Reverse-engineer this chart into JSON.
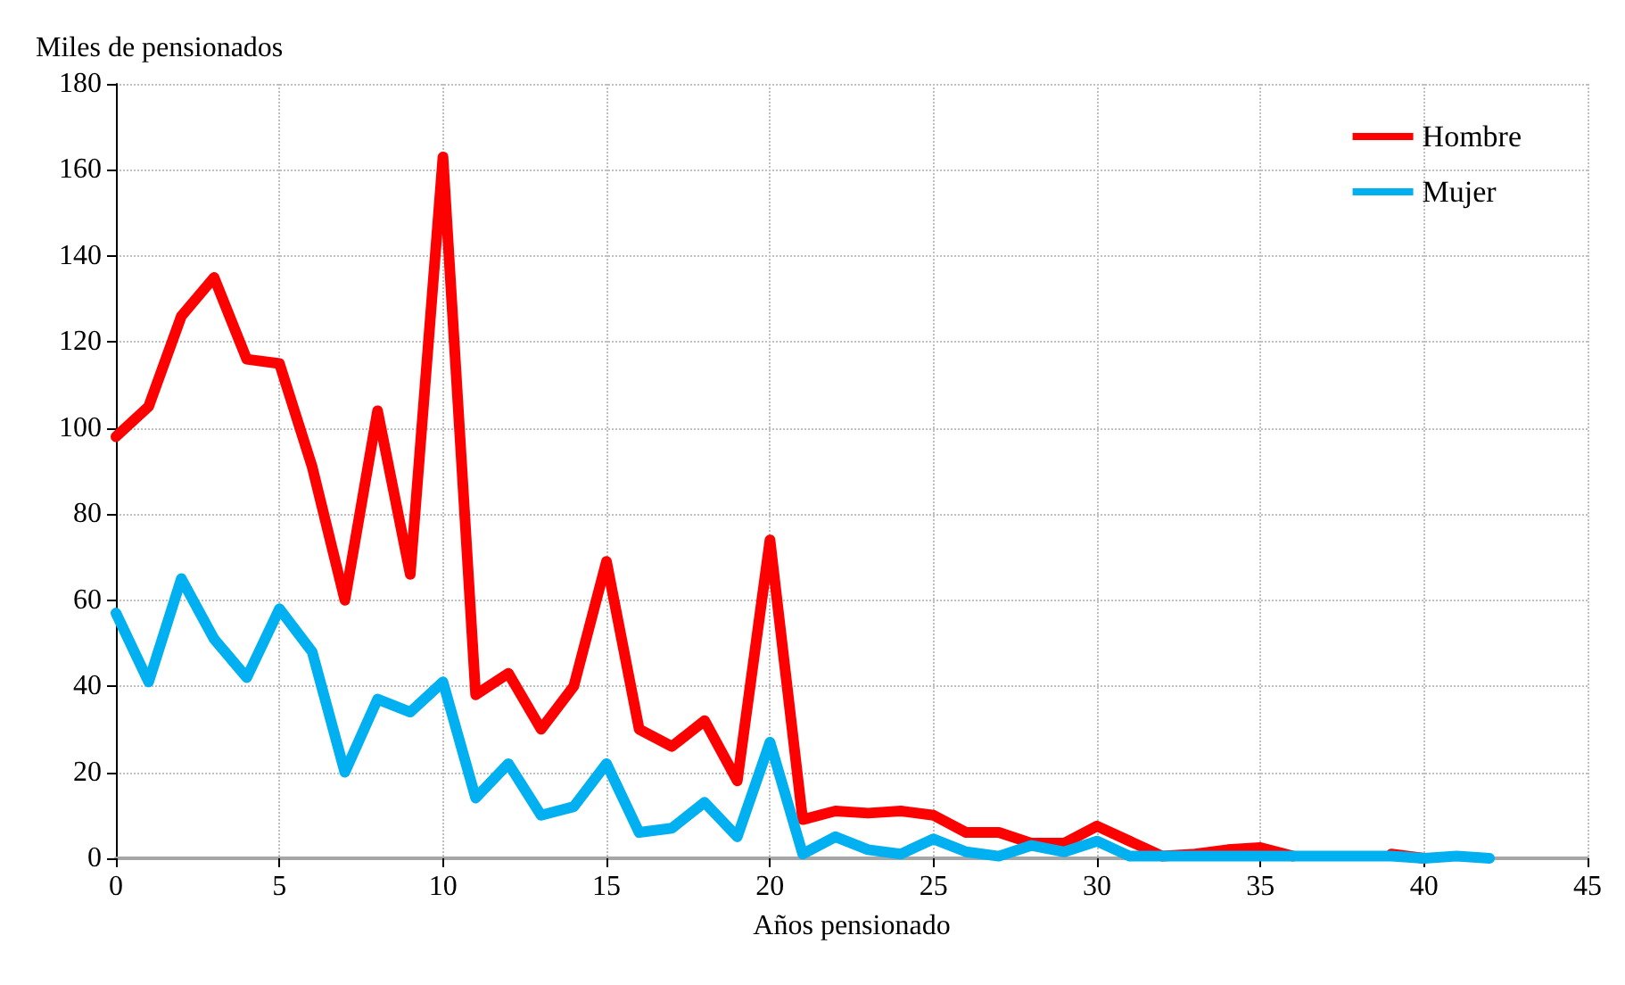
{
  "chart_data": {
    "type": "line",
    "xlabel": "Años pensionado",
    "ylabel": "Miles de pensionados",
    "x": [
      0,
      1,
      2,
      3,
      4,
      5,
      6,
      7,
      8,
      9,
      10,
      11,
      12,
      13,
      14,
      15,
      16,
      17,
      18,
      19,
      20,
      21,
      22,
      23,
      24,
      25,
      26,
      27,
      28,
      29,
      30,
      31,
      32,
      33,
      34,
      35,
      36,
      37,
      38,
      39,
      40,
      41,
      42
    ],
    "series": [
      {
        "name": "Hombre",
        "color": "#ff0000",
        "values": [
          98,
          105,
          126,
          135,
          116,
          115,
          91,
          60,
          104,
          66,
          163,
          38,
          43,
          30,
          40,
          69,
          30,
          26,
          32,
          18,
          74,
          9,
          11,
          10.5,
          11,
          10,
          6,
          6,
          3.5,
          3.5,
          7.5,
          4,
          0.5,
          1,
          2,
          2.5,
          0.5,
          null,
          null,
          1,
          0,
          null,
          null
        ]
      },
      {
        "name": "Mujer",
        "color": "#00b0f0",
        "values": [
          57,
          41,
          65,
          51,
          42,
          58,
          48,
          20,
          37,
          34,
          41,
          14,
          22,
          10,
          12,
          22,
          6,
          7,
          13,
          5,
          27,
          1,
          5,
          2,
          1,
          4.5,
          1.5,
          0.5,
          3,
          1.5,
          4,
          0.5,
          0.5,
          0.5,
          0.5,
          0.5,
          0.5,
          0.5,
          0.5,
          0.5,
          0,
          0.5,
          0
        ]
      }
    ],
    "xlim": [
      0,
      45
    ],
    "xticks": [
      0,
      5,
      10,
      15,
      20,
      25,
      30,
      35,
      40,
      45
    ],
    "ylim": [
      0,
      180
    ],
    "yticks": [
      0,
      20,
      40,
      60,
      80,
      100,
      120,
      140,
      160,
      180
    ],
    "grid": true,
    "legend": "top right",
    "marker": "none",
    "line_style": "solid"
  }
}
